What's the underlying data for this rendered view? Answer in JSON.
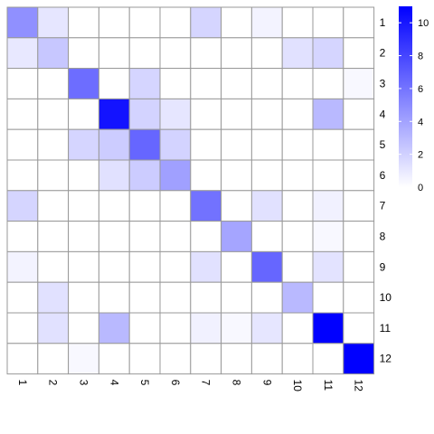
{
  "chart_data": {
    "type": "heatmap",
    "title": "",
    "xlabel": "",
    "ylabel": "",
    "rows": [
      "1",
      "2",
      "3",
      "4",
      "5",
      "6",
      "7",
      "8",
      "9",
      "10",
      "11",
      "12"
    ],
    "cols": [
      "1",
      "2",
      "3",
      "4",
      "5",
      "6",
      "7",
      "8",
      "9",
      "10",
      "11",
      "12"
    ],
    "values": [
      [
        4.8,
        1.1,
        0,
        0,
        0,
        0,
        1.8,
        0,
        0.5,
        0,
        0,
        0
      ],
      [
        1.0,
        2.4,
        0,
        0,
        0,
        0,
        0,
        0,
        0,
        1.3,
        1.8,
        0
      ],
      [
        0,
        0,
        6.3,
        0,
        1.8,
        0,
        0,
        0,
        0,
        0,
        0,
        0.3
      ],
      [
        0,
        0,
        0,
        10.2,
        1.9,
        1.1,
        0,
        0,
        0,
        0,
        3.0,
        0
      ],
      [
        0,
        0,
        1.8,
        2.2,
        6.6,
        1.9,
        0,
        0,
        0,
        0,
        0,
        0
      ],
      [
        0,
        0,
        0,
        1.3,
        2.2,
        4.1,
        0,
        0,
        0,
        0,
        0,
        0
      ],
      [
        1.8,
        0,
        0,
        0,
        0,
        0,
        6.1,
        0,
        1.3,
        0,
        0.6,
        0
      ],
      [
        0,
        0,
        0,
        0,
        0,
        0,
        0,
        3.9,
        0,
        0,
        0.3,
        0
      ],
      [
        0.5,
        0,
        0,
        0,
        0,
        0,
        1.3,
        0,
        6.6,
        0,
        1.2,
        0
      ],
      [
        0,
        1.3,
        0,
        0,
        0,
        0,
        0,
        0,
        0,
        3.0,
        0,
        0
      ],
      [
        0,
        1.3,
        0,
        3.0,
        0,
        0,
        0.6,
        0.3,
        1.1,
        0,
        11.0,
        0
      ],
      [
        0,
        0,
        0.3,
        0,
        0,
        0,
        0,
        0,
        0,
        0,
        0,
        11.0
      ]
    ],
    "color_scale": {
      "min": 0,
      "max": 11,
      "low_color": "#ffffff",
      "high_color": "#0000ff"
    },
    "legend": {
      "ticks": [
        0,
        2,
        4,
        6,
        8,
        10
      ],
      "position": "top-right"
    },
    "grid": true,
    "grid_color": "#999999"
  }
}
